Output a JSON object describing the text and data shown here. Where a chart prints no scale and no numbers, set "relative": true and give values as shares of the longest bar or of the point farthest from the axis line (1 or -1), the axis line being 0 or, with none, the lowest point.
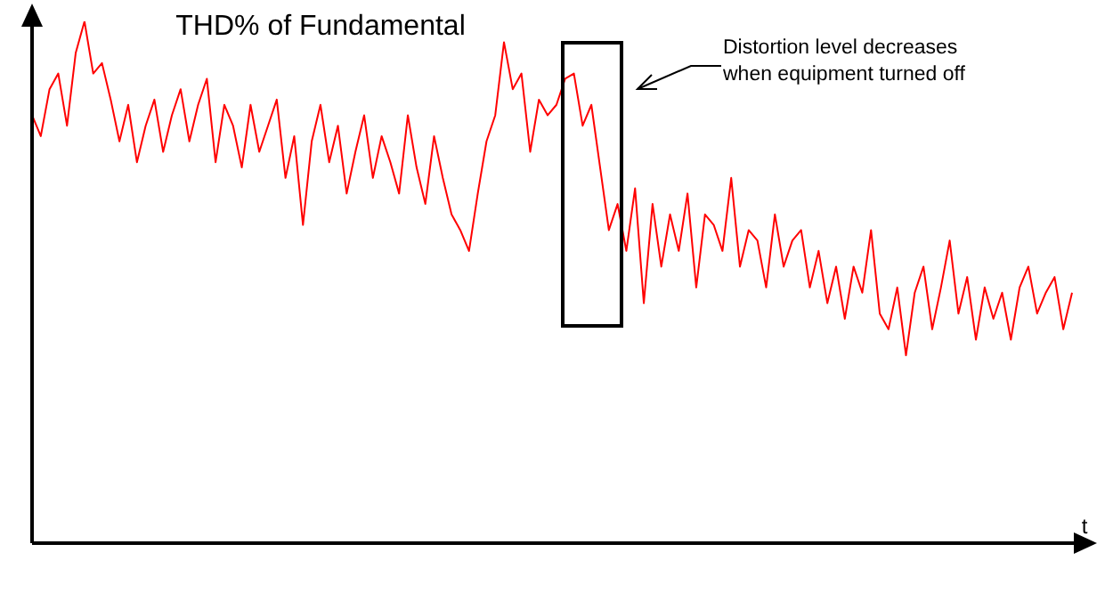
{
  "chart_data": {
    "type": "line",
    "title": "THD% of Fundamental",
    "xlabel": "t",
    "relative": true,
    "marker": "none",
    "annotations": [
      "Distortion level decreases\nwhen equipment turned off"
    ],
    "categories": [
      null,
      null,
      null,
      null,
      null,
      null,
      null,
      null,
      null,
      null,
      null,
      null,
      null,
      null,
      null,
      null,
      null,
      null,
      null,
      null,
      null,
      null,
      null,
      null,
      null,
      null,
      null,
      null,
      null,
      null,
      null,
      null,
      null,
      null,
      null,
      null,
      null,
      null,
      null,
      null,
      null,
      null,
      null,
      null,
      null,
      null,
      null,
      null,
      null,
      null,
      null,
      null,
      null,
      null,
      null,
      null,
      null,
      null,
      null,
      null,
      null,
      null,
      null,
      null,
      null,
      null,
      null,
      null,
      null,
      null,
      null,
      null,
      null,
      null,
      null,
      null,
      null,
      null,
      null,
      null,
      null,
      null,
      null,
      null,
      null,
      null,
      null,
      null,
      null,
      null,
      null,
      null,
      null,
      null,
      null,
      null,
      null,
      null,
      null,
      null,
      null,
      null,
      null,
      null,
      null,
      null,
      null,
      null,
      null,
      null,
      null,
      null,
      null,
      null,
      null,
      null,
      null,
      null,
      null,
      null
    ],
    "series": [
      {
        "color": "#ff0000",
        "values": [
          0.82,
          0.78,
          0.87,
          0.9,
          0.8,
          0.94,
          1.0,
          0.9,
          0.92,
          0.85,
          0.77,
          0.84,
          0.73,
          0.8,
          0.85,
          0.75,
          0.82,
          0.87,
          0.77,
          0.84,
          0.89,
          0.73,
          0.84,
          0.8,
          0.72,
          0.84,
          0.75,
          0.8,
          0.85,
          0.7,
          0.78,
          0.61,
          0.77,
          0.84,
          0.73,
          0.8,
          0.67,
          0.75,
          0.82,
          0.7,
          0.78,
          0.73,
          0.67,
          0.82,
          0.72,
          0.65,
          0.78,
          0.7,
          0.63,
          0.6,
          0.56,
          0.67,
          0.77,
          0.82,
          0.96,
          0.87,
          0.9,
          0.75,
          0.85,
          0.82,
          0.84,
          0.89,
          0.9,
          0.8,
          0.84,
          0.72,
          0.6,
          0.65,
          0.56,
          0.68,
          0.46,
          0.65,
          0.53,
          0.63,
          0.56,
          0.67,
          0.49,
          0.63,
          0.61,
          0.56,
          0.7,
          0.53,
          0.6,
          0.58,
          0.49,
          0.63,
          0.53,
          0.58,
          0.6,
          0.49,
          0.56,
          0.46,
          0.53,
          0.43,
          0.53,
          0.48,
          0.6,
          0.44,
          0.41,
          0.49,
          0.36,
          0.48,
          0.53,
          0.41,
          0.49,
          0.58,
          0.44,
          0.51,
          0.39,
          0.49,
          0.43,
          0.48,
          0.39,
          0.49,
          0.53,
          0.44,
          0.48,
          0.51,
          0.41,
          0.48
        ]
      }
    ]
  }
}
